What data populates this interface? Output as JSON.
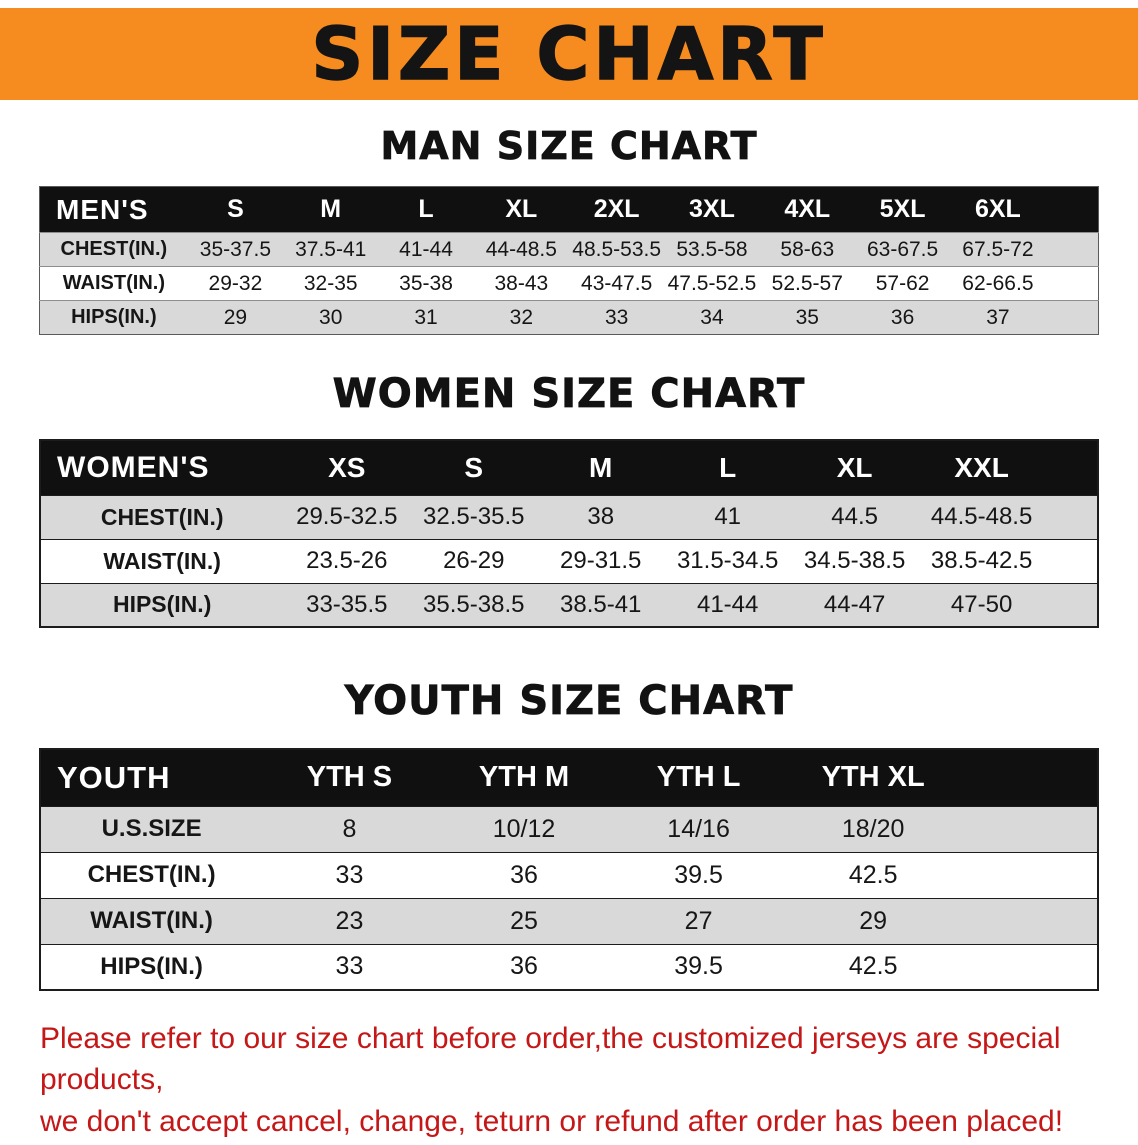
{
  "banner": {
    "title": "SIZE CHART"
  },
  "colors": {
    "banner_bg": "#f68b1f",
    "table_header_bg": "#101010",
    "row_alt_bg": "#d9d9d9",
    "footer_red": "#c51717"
  },
  "chart_data": [
    {
      "type": "table",
      "title": "MAN SIZE CHART",
      "header": [
        "MEN'S",
        "S",
        "M",
        "L",
        "XL",
        "2XL",
        "3XL",
        "4XL",
        "5XL",
        "6XL"
      ],
      "rows": [
        [
          "CHEST(IN.)",
          "35-37.5",
          "37.5-41",
          "41-44",
          "44-48.5",
          "48.5-53.5",
          "53.5-58",
          "58-63",
          "63-67.5",
          "67.5-72"
        ],
        [
          "WAIST(IN.)",
          "29-32",
          "32-35",
          "35-38",
          "38-43",
          "43-47.5",
          "47.5-52.5",
          "52.5-57",
          "57-62",
          "62-66.5"
        ],
        [
          "HIPS(IN.)",
          "29",
          "30",
          "31",
          "32",
          "33",
          "34",
          "35",
          "36",
          "37"
        ]
      ]
    },
    {
      "type": "table",
      "title": "WOMEN SIZE CHART",
      "header": [
        "WOMEN'S",
        "XS",
        "S",
        "M",
        "L",
        "XL",
        "XXL"
      ],
      "rows": [
        [
          "CHEST(IN.)",
          "29.5-32.5",
          "32.5-35.5",
          "38",
          "41",
          "44.5",
          "44.5-48.5"
        ],
        [
          "WAIST(IN.)",
          "23.5-26",
          "26-29",
          "29-31.5",
          "31.5-34.5",
          "34.5-38.5",
          "38.5-42.5"
        ],
        [
          "HIPS(IN.)",
          "33-35.5",
          "35.5-38.5",
          "38.5-41",
          "41-44",
          "44-47",
          "47-50"
        ]
      ]
    },
    {
      "type": "table",
      "title": "YOUTH SIZE CHART",
      "header": [
        "YOUTH",
        "YTH S",
        "YTH M",
        "YTH L",
        "YTH XL"
      ],
      "rows": [
        [
          "U.S.SIZE",
          "8",
          "10/12",
          "14/16",
          "18/20"
        ],
        [
          "CHEST(IN.)",
          "33",
          "36",
          "39.5",
          "42.5"
        ],
        [
          "WAIST(IN.)",
          "23",
          "25",
          "27",
          "29"
        ],
        [
          "HIPS(IN.)",
          "33",
          "36",
          "39.5",
          "42.5"
        ]
      ]
    }
  ],
  "footer": {
    "lines": [
      "Please refer to our size chart before order,the customized jerseys are special products,",
      "we don't accept cancel, change, teturn or refund after order has been placed!"
    ]
  }
}
